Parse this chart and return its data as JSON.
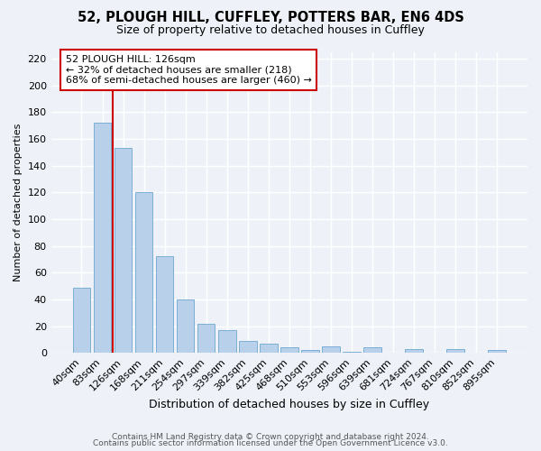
{
  "title1": "52, PLOUGH HILL, CUFFLEY, POTTERS BAR, EN6 4DS",
  "title2": "Size of property relative to detached houses in Cuffley",
  "xlabel": "Distribution of detached houses by size in Cuffley",
  "ylabel": "Number of detached properties",
  "categories": [
    "40sqm",
    "83sqm",
    "126sqm",
    "168sqm",
    "211sqm",
    "254sqm",
    "297sqm",
    "339sqm",
    "382sqm",
    "425sqm",
    "468sqm",
    "510sqm",
    "553sqm",
    "596sqm",
    "639sqm",
    "681sqm",
    "724sqm",
    "767sqm",
    "810sqm",
    "852sqm",
    "895sqm"
  ],
  "values": [
    49,
    172,
    153,
    120,
    72,
    40,
    22,
    17,
    9,
    7,
    4,
    2,
    5,
    1,
    4,
    0,
    3,
    0,
    3,
    0,
    2
  ],
  "bar_color": "#b8d0ea",
  "bar_edge_color": "#7aafd4",
  "vline_color": "#cc0000",
  "annotation_title": "52 PLOUGH HILL: 126sqm",
  "annotation_line1": "← 32% of detached houses are smaller (218)",
  "annotation_line2": "68% of semi-detached houses are larger (460) →",
  "annotation_box_edge_color": "#cc0000",
  "ylim": [
    0,
    225
  ],
  "yticks": [
    0,
    20,
    40,
    60,
    80,
    100,
    120,
    140,
    160,
    180,
    200,
    220
  ],
  "footnote1": "Contains HM Land Registry data © Crown copyright and database right 2024.",
  "footnote2": "Contains public sector information licensed under the Open Government Licence v3.0.",
  "bg_color": "#eef2f8",
  "plot_bg_color": "#eef2f8",
  "grid_color": "#ffffff",
  "title1_fontsize": 10.5,
  "title2_fontsize": 9,
  "xlabel_fontsize": 9,
  "ylabel_fontsize": 8,
  "tick_fontsize": 8,
  "annot_fontsize": 8,
  "footnote_fontsize": 6.5
}
